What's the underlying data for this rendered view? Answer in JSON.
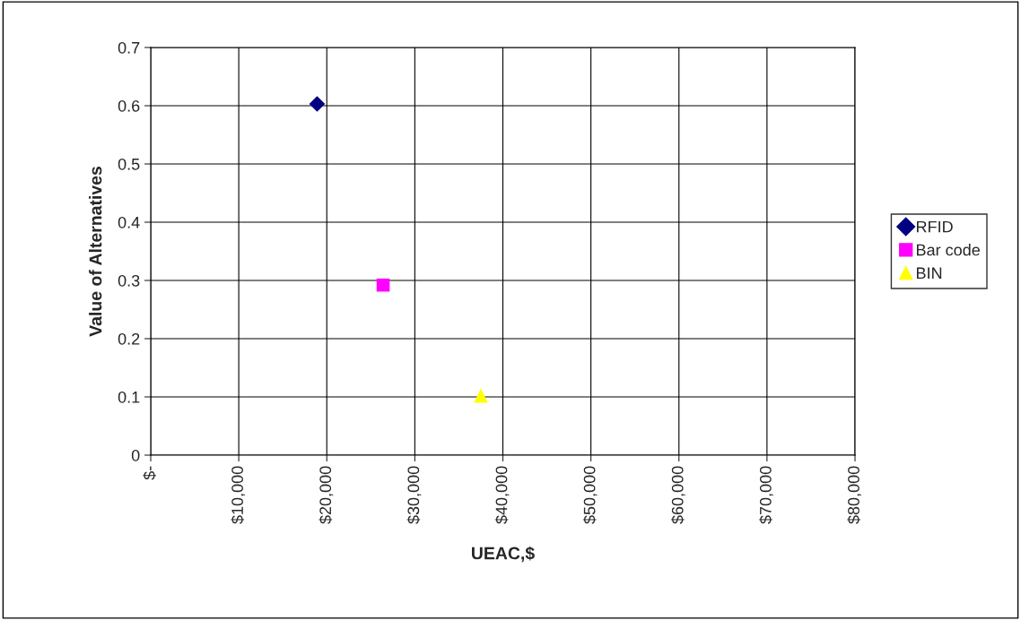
{
  "chart_data": {
    "type": "scatter",
    "xlabel": "UEAC,$",
    "ylabel": "Value of Alternatives",
    "series": [
      {
        "name": "RFID",
        "color": "#000080",
        "marker": "diamond",
        "x": [
          18900
        ],
        "values": [
          0.603
        ]
      },
      {
        "name": "Bar code",
        "color": "#ff00ff",
        "marker": "square",
        "x": [
          26400
        ],
        "values": [
          0.292
        ]
      },
      {
        "name": "BIN",
        "color": "#ffff00",
        "marker": "triangle",
        "x": [
          37500
        ],
        "values": [
          0.102
        ]
      }
    ],
    "xlim": [
      0,
      80000
    ],
    "ylim": [
      0,
      0.7
    ],
    "xticks": [
      {
        "value": 0,
        "label": "$-"
      },
      {
        "value": 10000,
        "label": "$10,000"
      },
      {
        "value": 20000,
        "label": "$20,000"
      },
      {
        "value": 30000,
        "label": "$30,000"
      },
      {
        "value": 40000,
        "label": "$40,000"
      },
      {
        "value": 50000,
        "label": "$50,000"
      },
      {
        "value": 60000,
        "label": "$60,000"
      },
      {
        "value": 70000,
        "label": "$70,000"
      },
      {
        "value": 80000,
        "label": "$80,000"
      }
    ],
    "yticks": [
      0,
      0.1,
      0.2,
      0.3,
      0.4,
      0.5,
      0.6,
      0.7
    ],
    "grid": true,
    "legend": "right"
  }
}
